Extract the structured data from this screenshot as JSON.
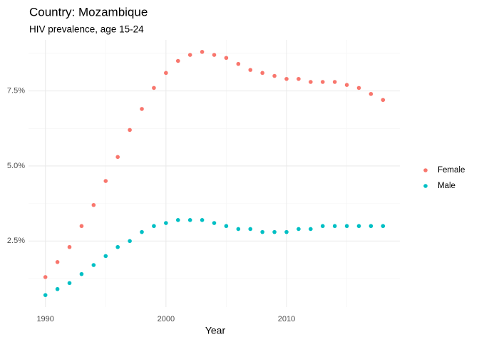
{
  "chart_data": {
    "type": "scatter",
    "title": "Country: Mozambique",
    "subtitle": "HIV prevalence, age 15-24",
    "x_label": "Year",
    "x": [
      1990,
      1991,
      1992,
      1993,
      1994,
      1995,
      1996,
      1997,
      1998,
      1999,
      2000,
      2001,
      2002,
      2003,
      2004,
      2005,
      2006,
      2007,
      2008,
      2009,
      2010,
      2011,
      2012,
      2013,
      2014,
      2015,
      2016,
      2017,
      2018
    ],
    "series": [
      {
        "name": "Female",
        "color": "#F8766D",
        "values": [
          1.3,
          1.8,
          2.3,
          3.0,
          3.7,
          4.5,
          5.3,
          6.2,
          6.9,
          7.6,
          8.1,
          8.5,
          8.7,
          8.8,
          8.7,
          8.6,
          8.4,
          8.2,
          8.1,
          8.0,
          7.9,
          7.9,
          7.8,
          7.8,
          7.8,
          7.7,
          7.6,
          7.4,
          7.2
        ]
      },
      {
        "name": "Male",
        "color": "#00BFC4",
        "values": [
          0.7,
          0.9,
          1.1,
          1.4,
          1.7,
          2.0,
          2.3,
          2.5,
          2.8,
          3.0,
          3.1,
          3.2,
          3.2,
          3.2,
          3.1,
          3.0,
          2.9,
          2.9,
          2.8,
          2.8,
          2.8,
          2.9,
          2.9,
          3.0,
          3.0,
          3.0,
          3.0,
          3.0,
          3.0
        ]
      }
    ],
    "xlim": [
      1988.6,
      2019.4
    ],
    "xticks": [
      1990,
      2000,
      2010
    ],
    "ylim": [
      0.3,
      9.2
    ],
    "yticks": [
      {
        "value": 2.5,
        "label": "2.5%"
      },
      {
        "value": 5.0,
        "label": "5.0%"
      },
      {
        "value": 7.5,
        "label": "7.5%"
      }
    ],
    "grid": true,
    "legend": "right"
  }
}
